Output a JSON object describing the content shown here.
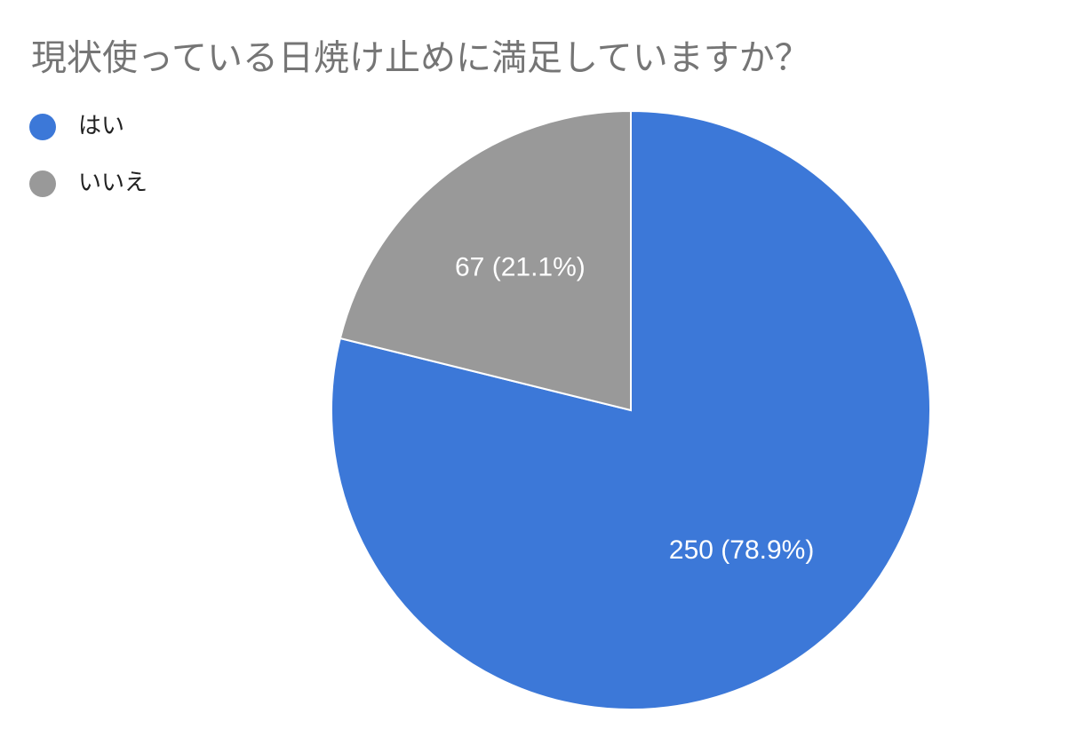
{
  "chart_data": {
    "type": "pie",
    "title": "現状使っている日焼け止めに満足していますか？",
    "categories": [
      "はい",
      "いいえ"
    ],
    "values": [
      250,
      67
    ],
    "value_labels": [
      "250 (78.9%)",
      "67 (21.1%)"
    ],
    "colors": [
      "#3c78d8",
      "#999999"
    ],
    "legend": "left"
  }
}
